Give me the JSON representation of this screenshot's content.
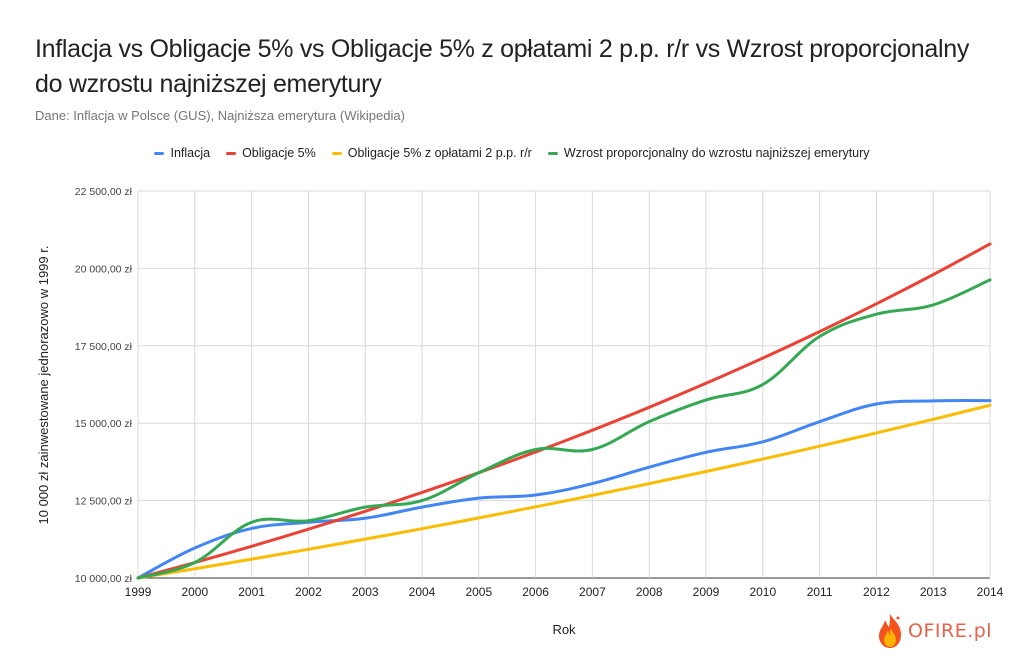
{
  "chart_data": {
    "type": "line",
    "title": "Inflacja vs Obligacje 5% vs Obligacje 5% z opłatami 2 p.p. r/r vs Wzrost proporcjonalny do wzrostu najniższej emerytury",
    "subtitle": "Dane: Inflacja w Polsce (GUS), Najniższa emerytura (Wikipedia)",
    "xlabel": "Rok",
    "ylabel": "10 000 zł zainwestowane jednorazowo w 1999 r.",
    "x": [
      "1999",
      "2000",
      "2001",
      "2002",
      "2003",
      "2004",
      "2005",
      "2006",
      "2007",
      "2008",
      "2009",
      "2010",
      "2011",
      "2012",
      "2013",
      "2014"
    ],
    "ylim": [
      10000,
      22500
    ],
    "yticks": [
      10000,
      12500,
      15000,
      17500,
      20000,
      22500
    ],
    "ytick_labels": [
      "10 000,00 zł",
      "12 500,00 zł",
      "15 000,00 zł",
      "17 500,00 zł",
      "20 000,00 zł",
      "22 500,00 zł"
    ],
    "grid": true,
    "legend_position": "top",
    "series": [
      {
        "name": "Inflacja",
        "color": "#4285f4",
        "values": [
          10000,
          10970,
          11600,
          11800,
          11930,
          12290,
          12580,
          12680,
          13050,
          13580,
          14060,
          14400,
          15050,
          15620,
          15720,
          15730
        ]
      },
      {
        "name": "Obligacje 5%",
        "color": "#ea4335",
        "values": [
          10000,
          10500,
          11025,
          11576,
          12155,
          12763,
          13401,
          14071,
          14775,
          15513,
          16289,
          17103,
          17959,
          18856,
          19799,
          20789
        ]
      },
      {
        "name": "Obligacje 5% z opłatami 2 p.p. r/r",
        "color": "#fbbc04",
        "values": [
          10000,
          10300,
          10609,
          10927,
          11255,
          11593,
          11941,
          12299,
          12668,
          13048,
          13439,
          13842,
          14258,
          14685,
          15126,
          15580
        ]
      },
      {
        "name": "Wzrost proporcjonalny do wzrostu najniższej emerytury",
        "color": "#34a853",
        "values": [
          10000,
          10500,
          11800,
          11850,
          12290,
          12500,
          13400,
          14150,
          14150,
          15050,
          15750,
          16250,
          17800,
          18520,
          18820,
          19630
        ]
      }
    ]
  },
  "logo": {
    "text": "OFIRE.pl"
  }
}
